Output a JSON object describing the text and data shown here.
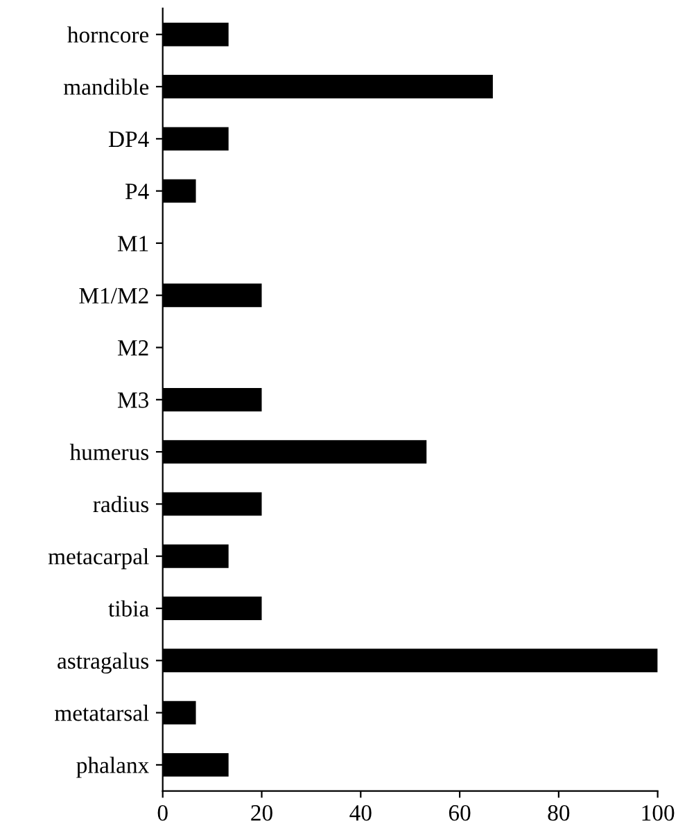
{
  "chart_data": {
    "type": "bar",
    "orientation": "horizontal",
    "categories": [
      "horncore",
      "mandible",
      "DP4",
      "P4",
      "M1",
      "M1/M2",
      "M2",
      "M3",
      "humerus",
      "radius",
      "metacarpal",
      "tibia",
      "astragalus",
      "metatarsal",
      "phalanx"
    ],
    "values": [
      13.3,
      66.7,
      13.3,
      6.7,
      0,
      20,
      0,
      20,
      53.3,
      20,
      13.3,
      20,
      100,
      6.7,
      13.3
    ],
    "color": "#000000",
    "xlim": [
      0,
      100
    ],
    "xticks": [
      0,
      20,
      40,
      60,
      80,
      100
    ],
    "grid": false,
    "legend": false
  }
}
